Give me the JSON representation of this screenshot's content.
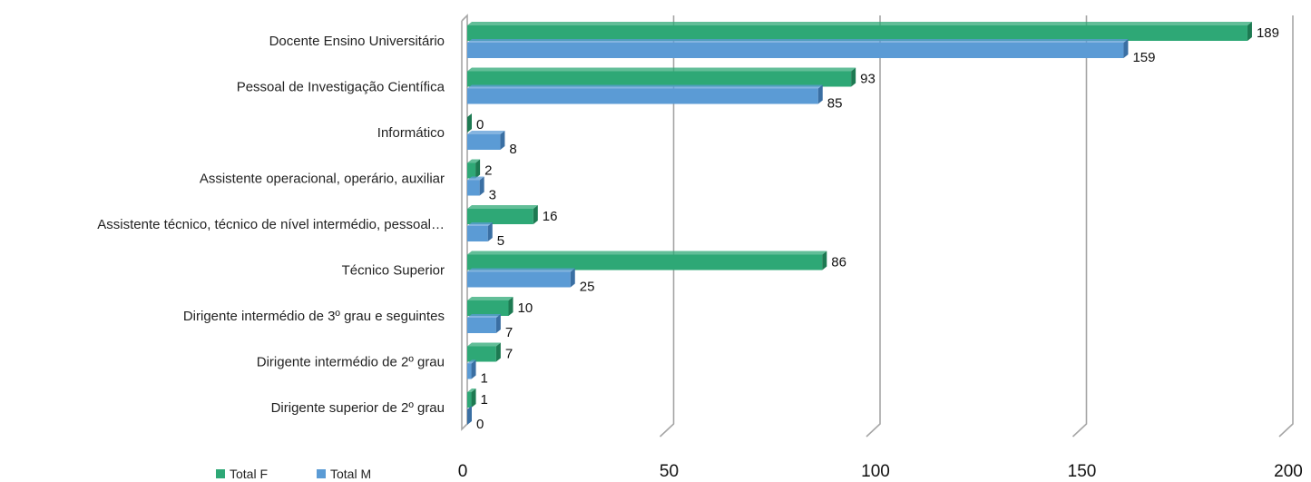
{
  "chart_data": {
    "type": "bar",
    "orientation": "horizontal",
    "categories": [
      "Docente Ensino Universitário",
      "Pessoal de Investigação Científica",
      "Informático",
      "Assistente operacional, operário, auxiliar",
      "Assistente técnico, técnico de nível intermédio, pessoal…",
      "Técnico Superior",
      "Dirigente intermédio de 3º grau e seguintes",
      "Dirigente intermédio de 2º grau",
      "Dirigente superior de 2º grau"
    ],
    "series": [
      {
        "name": "Total F",
        "color": "#2ea876",
        "side_color": "#1d7a52",
        "values": [
          189,
          93,
          0,
          2,
          16,
          86,
          10,
          7,
          1
        ]
      },
      {
        "name": "Total M",
        "color": "#5b9bd5",
        "side_color": "#3a6fa3",
        "values": [
          159,
          85,
          8,
          3,
          5,
          25,
          7,
          1,
          0
        ]
      }
    ],
    "xlim": [
      0,
      200
    ],
    "xticks": [
      "0",
      "50",
      "100",
      "150",
      "200"
    ],
    "xtick_values": [
      0,
      50,
      100,
      150,
      200
    ],
    "grid": true,
    "legend_position": "bottom-left",
    "title": "",
    "xlabel": "",
    "ylabel": ""
  }
}
